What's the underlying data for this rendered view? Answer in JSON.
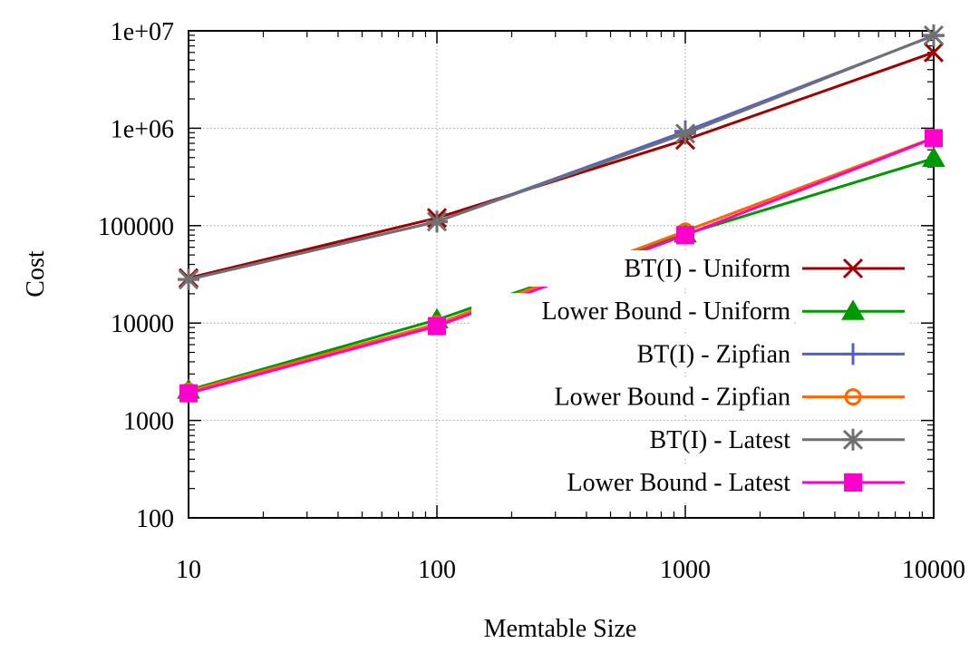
{
  "chart_data": {
    "type": "line",
    "xlabel": "Memtable Size",
    "ylabel": "Cost",
    "xscale": "log",
    "yscale": "log",
    "xlim": [
      10,
      10000
    ],
    "ylim": [
      100,
      10000000
    ],
    "x": [
      10,
      100,
      1000,
      10000
    ],
    "xticks": [
      "10",
      "100",
      "1000",
      "10000"
    ],
    "yticks": [
      "100",
      "1000",
      "10000",
      "100000",
      "1e+06",
      "1e+07"
    ],
    "grid": true,
    "legend_position": "bottom-right",
    "series": [
      {
        "name": "BT(I) - Uniform",
        "color": "#a00000",
        "marker": "cross",
        "values": [
          29000,
          120000,
          760000,
          6000000
        ]
      },
      {
        "name": "Lower Bound - Uniform",
        "color": "#009900",
        "marker": "filled-triangle",
        "values": [
          2050,
          10800,
          82000,
          490000
        ]
      },
      {
        "name": "BT(I) - Zipfian",
        "color": "#5060d0",
        "marker": "plus",
        "values": [
          28000,
          110000,
          930000,
          8900000
        ]
      },
      {
        "name": "Lower Bound - Zipfian",
        "color": "#ff6600",
        "marker": "open-circle",
        "values": [
          2000,
          9800,
          88000,
          800000
        ]
      },
      {
        "name": "BT(I) - Latest",
        "color": "#707070",
        "marker": "star",
        "values": [
          28000,
          110000,
          880000,
          9000000
        ]
      },
      {
        "name": "Lower Bound - Latest",
        "color": "#ff00cc",
        "marker": "filled-square",
        "values": [
          1900,
          9300,
          80000,
          790000
        ]
      }
    ]
  }
}
